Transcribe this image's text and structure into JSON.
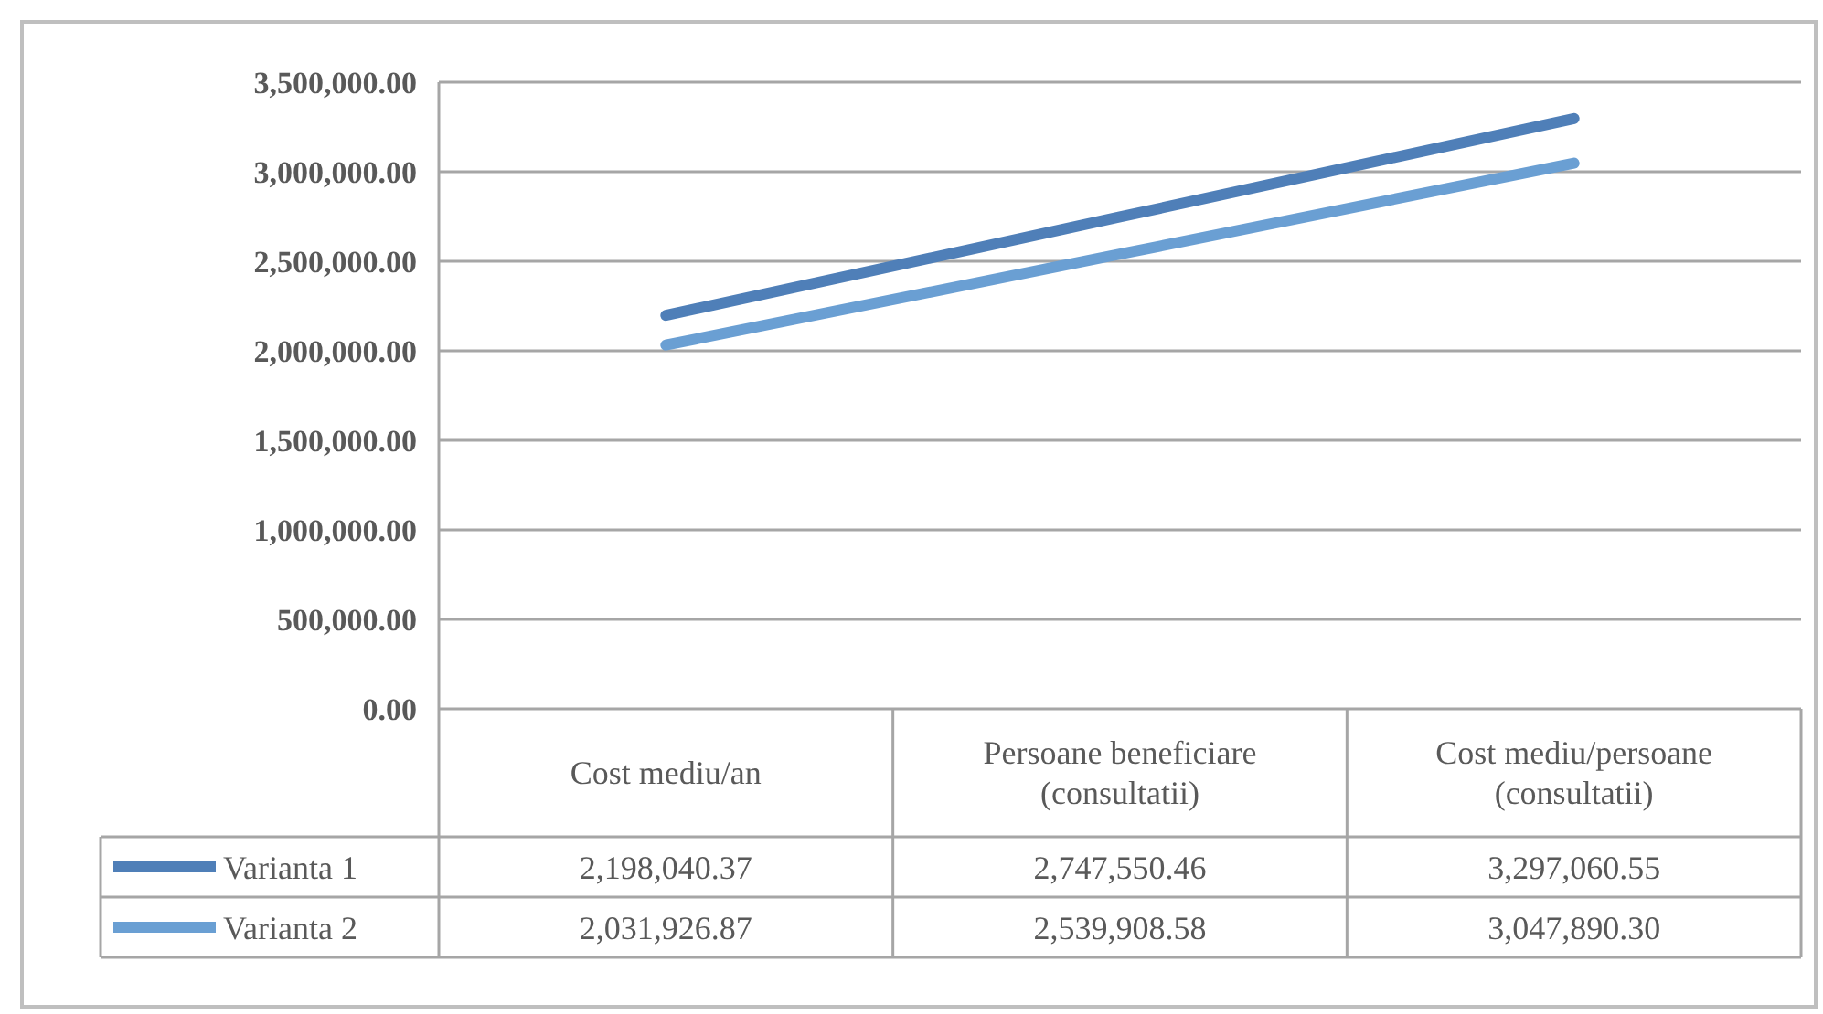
{
  "chart_data": {
    "type": "line",
    "categories": [
      "Cost mediu/an",
      "Persoane beneficiare (consultatii)",
      "Cost mediu/persoane (consultatii)"
    ],
    "series": [
      {
        "name": "Varianta 1",
        "color": "#4f7fb8",
        "values": [
          2198040.37,
          2747550.46,
          3297060.55
        ],
        "value_labels": [
          "2,198,040.37",
          "2,747,550.46",
          "3,297,060.55"
        ]
      },
      {
        "name": "Varianta 2",
        "color": "#6a9fd3",
        "values": [
          2031926.87,
          2539908.58,
          3047890.3
        ],
        "value_labels": [
          "2,031,926.87",
          "2,539,908.58",
          "3,047,890.30"
        ]
      }
    ],
    "ylim": [
      0,
      3500000
    ],
    "yticks": [
      {
        "value": 0,
        "label": "0.00"
      },
      {
        "value": 500000,
        "label": "500,000.00"
      },
      {
        "value": 1000000,
        "label": "1,000,000.00"
      },
      {
        "value": 1500000,
        "label": "1,500,000.00"
      },
      {
        "value": 2000000,
        "label": "2,000,000.00"
      },
      {
        "value": 2500000,
        "label": "2,500,000.00"
      },
      {
        "value": 3000000,
        "label": "3,000,000.00"
      },
      {
        "value": 3500000,
        "label": "3,500,000.00"
      }
    ],
    "grid": "y",
    "legend": "bottom",
    "marker": "none",
    "line_style": "solid"
  }
}
